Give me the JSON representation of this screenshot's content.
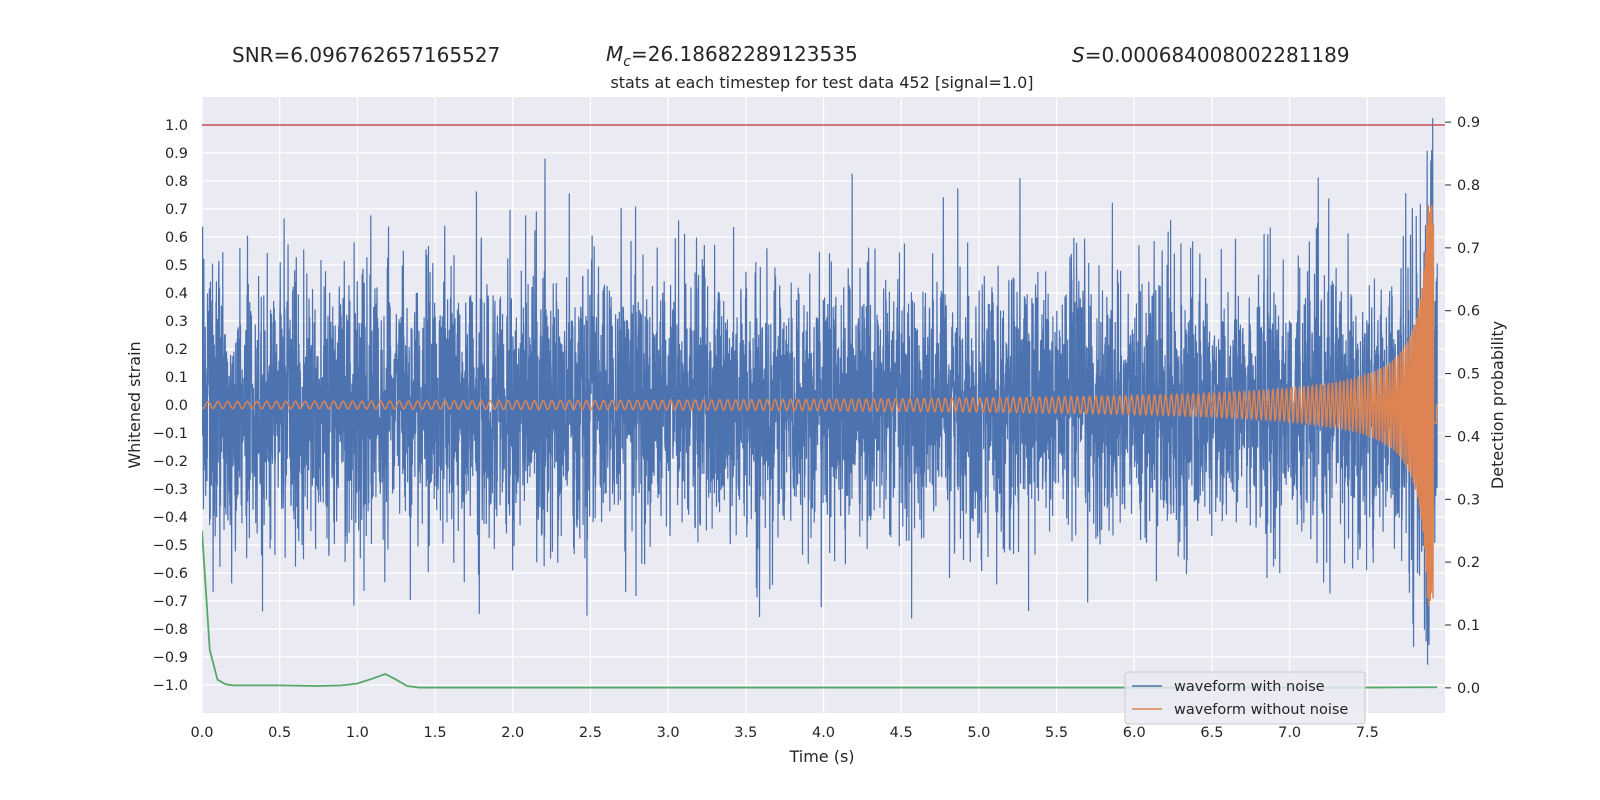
{
  "chart_data": {
    "type": "line",
    "title": "stats at each timestep for test data 452 [signal=1.0]",
    "annotations": {
      "snr": "SNR=6.096762657165527",
      "mc_symbol": "M",
      "mc_sub": "c",
      "mc_value": "=26.18682289123535",
      "s_symbol": "S",
      "s_value": "=0.000684008002281189"
    },
    "xlabel": "Time (s)",
    "ylabel": "Whitened strain",
    "y2label": "Detection probability",
    "xlim": [
      0.0,
      8.0
    ],
    "ylim": [
      -1.1,
      1.1
    ],
    "y2lim": [
      -0.04,
      0.94
    ],
    "x_ticks": [
      "0.0",
      "0.5",
      "1.0",
      "1.5",
      "2.0",
      "2.5",
      "3.0",
      "3.5",
      "4.0",
      "4.5",
      "5.0",
      "5.5",
      "6.0",
      "6.5",
      "7.0",
      "7.5"
    ],
    "y_ticks": [
      "1.0",
      "0.9",
      "0.8",
      "0.7",
      "0.6",
      "0.5",
      "0.4",
      "0.3",
      "0.2",
      "0.1",
      "0.0",
      "−0.1",
      "−0.2",
      "−0.3",
      "−0.4",
      "−0.5",
      "−0.6",
      "−0.7",
      "−0.8",
      "−0.9",
      "−1.0"
    ],
    "y2_ticks": [
      "0.9",
      "0.8",
      "0.7",
      "0.6",
      "0.5",
      "0.4",
      "0.3",
      "0.2",
      "0.1",
      "0.0"
    ],
    "grid": true,
    "threshold": 1.0,
    "legend": {
      "placement": "lower-right",
      "entries": [
        "waveform with noise",
        "waveform without noise"
      ]
    },
    "series": [
      {
        "name": "waveform with noise",
        "color": "#4c72b0",
        "axis": "left",
        "noise_amplitude": 0.23,
        "duration_s": 7.95
      },
      {
        "name": "waveform without noise",
        "color": "#dd8452",
        "axis": "left",
        "chirp_start_amp": 0.002,
        "chirp_peak_amp": 0.72,
        "merger_time_s": 7.93
      },
      {
        "name": "",
        "color": "#55a868",
        "axis": "right",
        "x": [
          0.0,
          0.05,
          0.1,
          0.15,
          0.2,
          0.3,
          0.5,
          0.75,
          0.9,
          1.0,
          1.1,
          1.18,
          1.25,
          1.32,
          1.4,
          1.6,
          2.0,
          3.0,
          4.0,
          5.0,
          6.0,
          7.0,
          7.5,
          7.95
        ],
        "values": [
          0.25,
          0.06,
          0.013,
          0.006,
          0.004,
          0.004,
          0.004,
          0.003,
          0.004,
          0.007,
          0.015,
          0.022,
          0.013,
          0.003,
          0.0005,
          0.0005,
          0.0005,
          0.0005,
          0.0005,
          0.0005,
          0.0005,
          0.0005,
          0.0005,
          0.001
        ]
      }
    ]
  }
}
